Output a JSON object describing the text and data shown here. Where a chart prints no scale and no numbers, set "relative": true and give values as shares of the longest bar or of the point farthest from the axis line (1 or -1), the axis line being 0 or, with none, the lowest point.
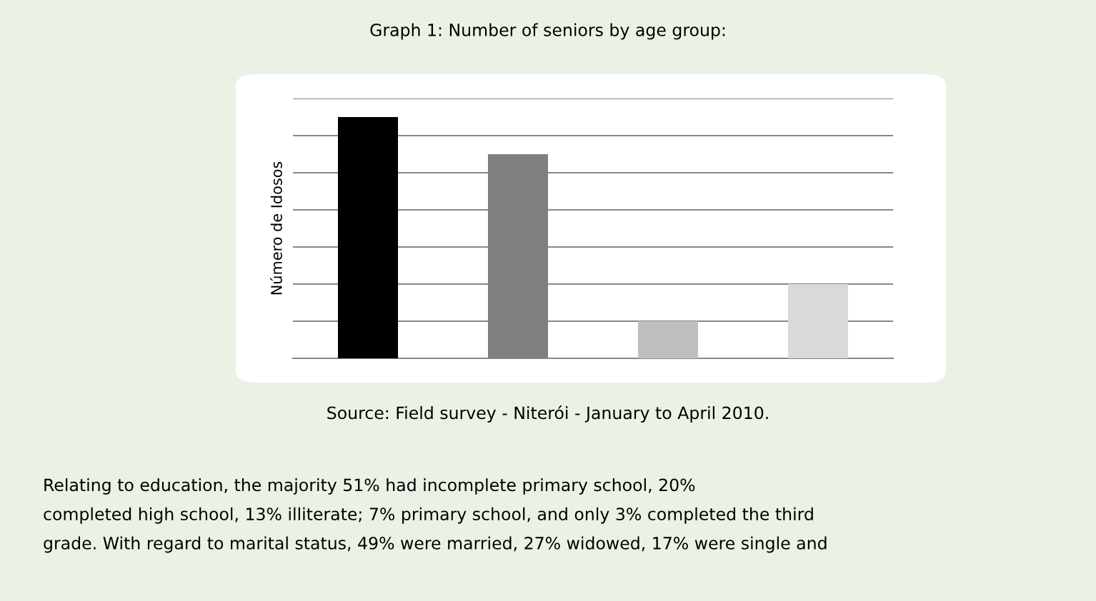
{
  "chart_data": {
    "type": "bar",
    "title": "Graph 1: Number of seniors by age group:",
    "ylabel": "Número de Idosos",
    "categories": [
      null,
      null,
      null,
      null
    ],
    "values": [
      1,
      0.846,
      0.154,
      0.308
    ],
    "colors": [
      "#000000",
      "#7f7f7f",
      "#bfbfbf",
      "#d9d9d9"
    ],
    "relative": true,
    "grid": "y",
    "annotations": [
      "Source: Field survey - Niterói - January to April 2010.",
      "Relating to education, the majority 51% had incomplete primary school, 20%\ncompleted high school, 13% illiterate; 7% primary school, and only 3% completed the third\ngrade. With regard to marital status, 49% were married, 27% widowed, 17% were single and"
    ]
  }
}
